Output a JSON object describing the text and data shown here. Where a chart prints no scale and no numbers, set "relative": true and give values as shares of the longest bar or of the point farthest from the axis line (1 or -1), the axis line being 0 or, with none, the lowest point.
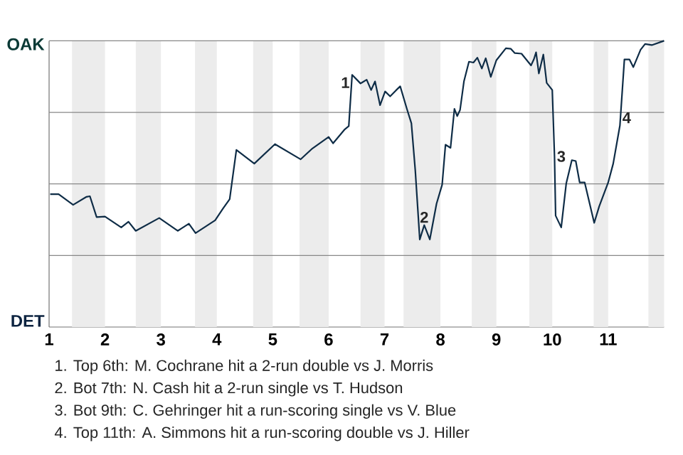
{
  "chart_data": {
    "type": "line",
    "color": "#0e2c46",
    "relative": true,
    "x": [
      1.02,
      1.17,
      1.43,
      1.67,
      1.73,
      1.85,
      2.0,
      2.29,
      2.42,
      2.55,
      2.97,
      3.3,
      3.5,
      3.62,
      3.97,
      4.11,
      4.23,
      4.35,
      4.67,
      5.04,
      5.5,
      5.71,
      6.0,
      6.08,
      6.29,
      6.36,
      6.42,
      6.57,
      6.68,
      6.76,
      6.83,
      6.92,
      7.01,
      7.1,
      7.21,
      7.28,
      7.4,
      7.48,
      7.55,
      7.63,
      7.71,
      7.81,
      7.93,
      8.03,
      8.09,
      8.18,
      8.25,
      8.3,
      8.35,
      8.42,
      8.51,
      8.59,
      8.66,
      8.74,
      8.81,
      8.9,
      9.0,
      9.17,
      9.26,
      9.33,
      9.45,
      9.62,
      9.67,
      9.71,
      9.76,
      9.84,
      9.9,
      10.0,
      10.04,
      10.06,
      10.16,
      10.25,
      10.35,
      10.42,
      10.49,
      10.58,
      10.75,
      10.84,
      11.0,
      11.09,
      11.21,
      11.29,
      11.38,
      11.45,
      11.58,
      11.66,
      11.78,
      12.0
    ],
    "values": [
      0.464,
      0.464,
      0.427,
      0.455,
      0.457,
      0.384,
      0.386,
      0.348,
      0.368,
      0.336,
      0.381,
      0.336,
      0.361,
      0.328,
      0.373,
      0.414,
      0.447,
      0.619,
      0.571,
      0.639,
      0.586,
      0.624,
      0.664,
      0.642,
      0.691,
      0.702,
      0.881,
      0.851,
      0.864,
      0.828,
      0.858,
      0.775,
      0.823,
      0.806,
      0.828,
      0.841,
      0.762,
      0.712,
      0.546,
      0.306,
      0.356,
      0.306,
      0.431,
      0.497,
      0.637,
      0.626,
      0.762,
      0.737,
      0.758,
      0.858,
      0.927,
      0.924,
      0.941,
      0.903,
      0.939,
      0.874,
      0.932,
      0.974,
      0.972,
      0.957,
      0.955,
      0.914,
      0.935,
      0.96,
      0.886,
      0.952,
      0.853,
      0.828,
      0.596,
      0.389,
      0.348,
      0.502,
      0.583,
      0.58,
      0.505,
      0.505,
      0.364,
      0.422,
      0.505,
      0.571,
      0.704,
      0.935,
      0.935,
      0.908,
      0.969,
      0.989,
      0.985,
      1.0
    ],
    "xlim": [
      1,
      12
    ],
    "xticks": [
      1,
      2,
      3,
      4,
      5,
      6,
      7,
      8,
      9,
      10,
      11
    ],
    "ref_lines": [
      {
        "axis": "y",
        "value": 0.25,
        "color": "#888888"
      },
      {
        "axis": "y",
        "value": 0.5,
        "color": "#888888"
      },
      {
        "axis": "y",
        "value": 0.75,
        "color": "#888888"
      },
      {
        "axis": "y",
        "value": 1.0,
        "color": "#888888"
      }
    ],
    "bands": [
      {
        "axis": "x",
        "from": 1.41,
        "to": 2,
        "color": "#ececec"
      },
      {
        "axis": "x",
        "from": 2.55,
        "to": 3,
        "color": "#ececec"
      },
      {
        "axis": "x",
        "from": 3.61,
        "to": 4,
        "color": "#ececec"
      },
      {
        "axis": "x",
        "from": 4.65,
        "to": 5,
        "color": "#ececec"
      },
      {
        "axis": "x",
        "from": 5.48,
        "to": 6,
        "color": "#ececec"
      },
      {
        "axis": "x",
        "from": 6.57,
        "to": 7,
        "color": "#ececec"
      },
      {
        "axis": "x",
        "from": 7.34,
        "to": 8,
        "color": "#ececec"
      },
      {
        "axis": "x",
        "from": 8.56,
        "to": 9,
        "color": "#ececec"
      },
      {
        "axis": "x",
        "from": 9.59,
        "to": 10,
        "color": "#ececec"
      },
      {
        "axis": "x",
        "from": 10.74,
        "to": 11,
        "color": "#ececec"
      },
      {
        "axis": "x",
        "from": 11.72,
        "to": 12,
        "color": "#ececec"
      }
    ],
    "annotations": [
      {
        "text": "1",
        "x": 6.42,
        "y": 0.881
      },
      {
        "text": "2",
        "x": 7.71,
        "y": 0.356
      },
      {
        "text": "3",
        "x": 10.04,
        "y": 0.596
      },
      {
        "text": "4",
        "x": 11.21,
        "y": 0.704
      },
      "OAK",
      "DET",
      "1. Top 6th: M. Cochrane hit a 2-run double vs J. Morris",
      "2. Bot 7th: N. Cash hit a 2-run single vs T. Hudson",
      "3. Bot 9th: C. Gehringer hit a run-scoring single vs V. Blue",
      "4. Top 11th: A. Simmons hit a run-scoring double vs J. Hiller"
    ]
  }
}
